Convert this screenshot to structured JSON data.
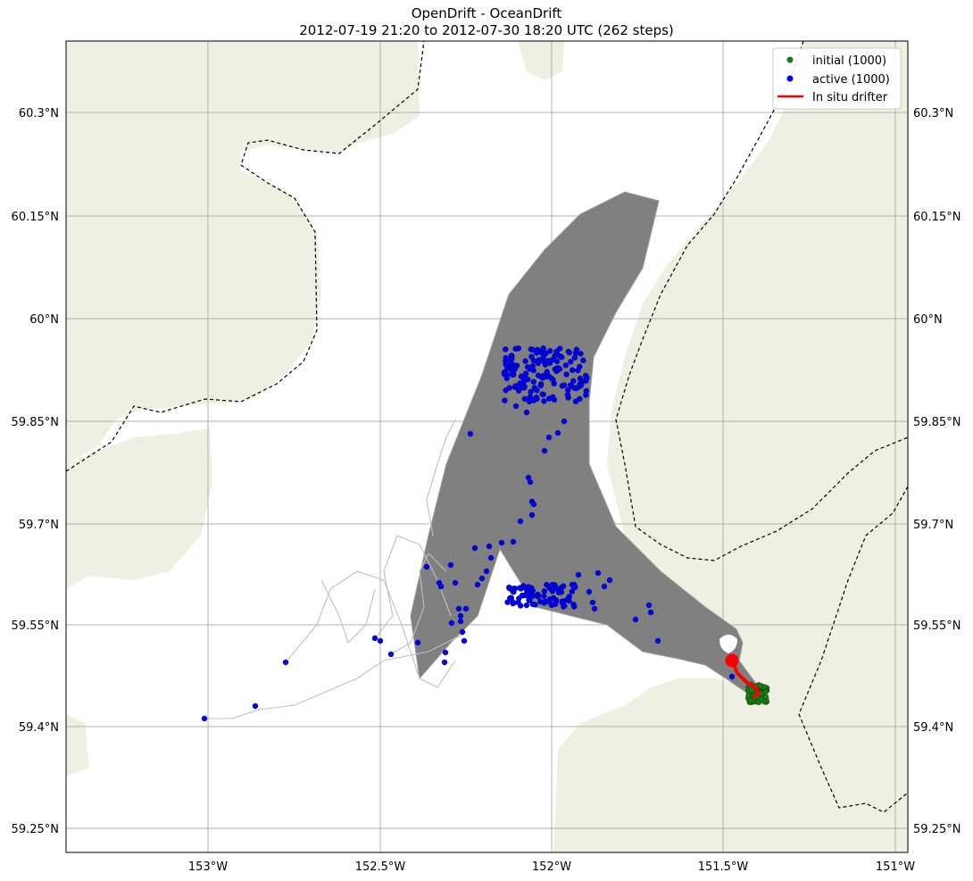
{
  "title": {
    "line1": "OpenDrift - OceanDrift",
    "line2": "2012-07-19 21:20 to 2012-07-30 18:20 UTC (262 steps)"
  },
  "colors": {
    "land": "#efefe2",
    "ocean": "#ffffff",
    "trajectory": "#808080",
    "initial": "#1a7a1a",
    "active": "#0000ee",
    "drifter": "#ff0000",
    "grid": "#b0b0b0",
    "border": "#000000"
  },
  "axes": {
    "lon_labels": [
      "153°W",
      "152.5°W",
      "152°W",
      "151.5°W",
      "151°W"
    ],
    "lat_labels": [
      "60.3°N",
      "60.15°N",
      "60°N",
      "59.85°N",
      "59.7°N",
      "59.55°N",
      "59.4°N",
      "59.25°N"
    ]
  },
  "legend": {
    "items": [
      {
        "label": "initial (1000)",
        "marker": "green-dot"
      },
      {
        "label": "active (1000)",
        "marker": "blue-dot"
      },
      {
        "label": "In situ drifter",
        "marker": "red-line"
      }
    ]
  }
}
